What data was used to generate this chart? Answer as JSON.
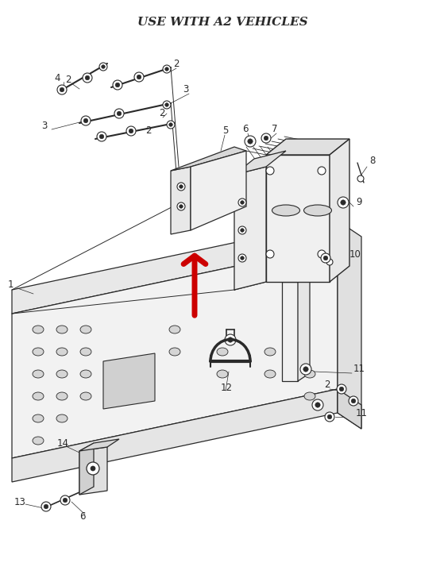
{
  "title": "USE WITH A2 VEHICLES",
  "background_color": "#ffffff",
  "line_color": "#2a2a2a",
  "arrow_color": "#cc0000",
  "figsize": [
    5.59,
    7.33
  ],
  "dpi": 100
}
